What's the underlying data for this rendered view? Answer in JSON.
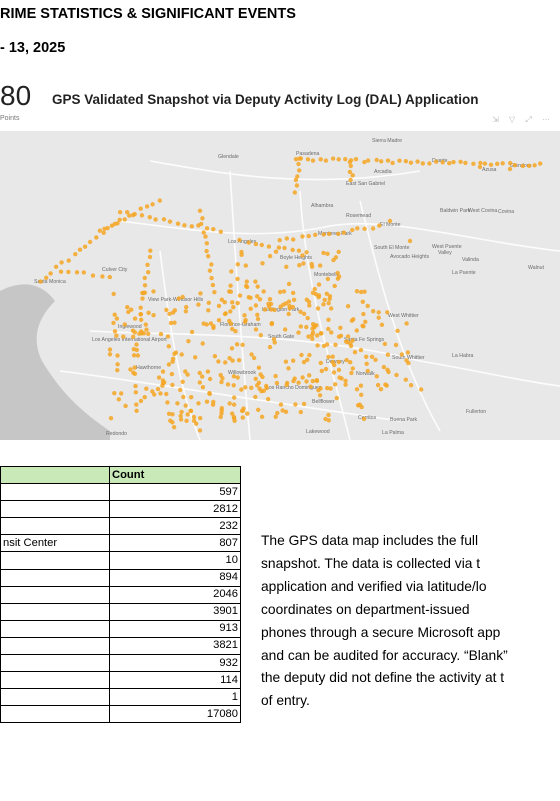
{
  "header": {
    "title": "RIME STATISTICS & SIGNIFICANT EVENTS",
    "date": "- 13, 2025"
  },
  "map_panel": {
    "count": "80",
    "count_label": "Points",
    "title": "GPS Validated Snapshot via Deputy Activity Log (DAL) Application",
    "places": [
      {
        "name": "Glendale"
      },
      {
        "name": "Pasadena"
      },
      {
        "name": "Sierra Madre"
      },
      {
        "name": "Arcadia"
      },
      {
        "name": "Duarte"
      },
      {
        "name": "Azusa"
      },
      {
        "name": "Glendora"
      },
      {
        "name": "East San Gabriel"
      },
      {
        "name": "Alhambra"
      },
      {
        "name": "Rosemead"
      },
      {
        "name": "El Monte"
      },
      {
        "name": "Baldwin Park"
      },
      {
        "name": "West Covina"
      },
      {
        "name": "Covina"
      },
      {
        "name": "Monterey Park"
      },
      {
        "name": "Los Angeles"
      },
      {
        "name": "Culver City"
      },
      {
        "name": "South El Monte"
      },
      {
        "name": "Avocado Heights"
      },
      {
        "name": "Valley"
      },
      {
        "name": "West Puente"
      },
      {
        "name": "Valinda"
      },
      {
        "name": "Boyle Heights"
      },
      {
        "name": "Santa Monica"
      },
      {
        "name": "Montebello"
      },
      {
        "name": "La Puente"
      },
      {
        "name": "Walnut"
      },
      {
        "name": "View Park-Windsor Hills"
      },
      {
        "name": "Los Angeles International Airport"
      },
      {
        "name": "Inglewood"
      },
      {
        "name": "Florence-Graham"
      },
      {
        "name": "Huntington Park"
      },
      {
        "name": "West Whittier"
      },
      {
        "name": "South Gate"
      },
      {
        "name": "Santa Fe Springs"
      },
      {
        "name": "Downey"
      },
      {
        "name": "South Whittier"
      },
      {
        "name": "La Habra"
      },
      {
        "name": "Hawthorne"
      },
      {
        "name": "Willowbrook"
      },
      {
        "name": "Norwalk"
      },
      {
        "name": "Los Rancho Dominguez"
      },
      {
        "name": "Bellflower"
      },
      {
        "name": "Fullerton"
      },
      {
        "name": "Cerritos"
      },
      {
        "name": "Buena Park"
      },
      {
        "name": "Lakewood"
      },
      {
        "name": "Redondo"
      },
      {
        "name": "La Palma"
      }
    ],
    "colors": {
      "dot": "#f5a623",
      "water": "#c6c6c6",
      "land": "#e8e8e8"
    }
  },
  "table": {
    "headers": [
      "",
      "Count"
    ],
    "rows": [
      {
        "label": "",
        "count": "597"
      },
      {
        "label": "",
        "count": "2812"
      },
      {
        "label": "",
        "count": "232"
      },
      {
        "label": "nsit Center",
        "count": "807"
      },
      {
        "label": "",
        "count": "10"
      },
      {
        "label": "",
        "count": "894"
      },
      {
        "label": "",
        "count": "2046"
      },
      {
        "label": "",
        "count": "3901"
      },
      {
        "label": "",
        "count": "913"
      },
      {
        "label": "",
        "count": "3821"
      },
      {
        "label": "",
        "count": "932"
      },
      {
        "label": "",
        "count": "114"
      },
      {
        "label": "",
        "count": "1"
      },
      {
        "label": "",
        "count": "17080"
      }
    ],
    "header_color": "#c9e9b9"
  },
  "paragraph": {
    "lines": [
      "The GPS data map includes the full",
      "snapshot. The data is collected via t",
      "application and verified via latitude/lo",
      "coordinates on department-issued",
      "phones through a secure Microsoft app",
      "and can be audited for accuracy. “Blank”",
      "the deputy did not define the activity at t",
      "of entry."
    ]
  }
}
